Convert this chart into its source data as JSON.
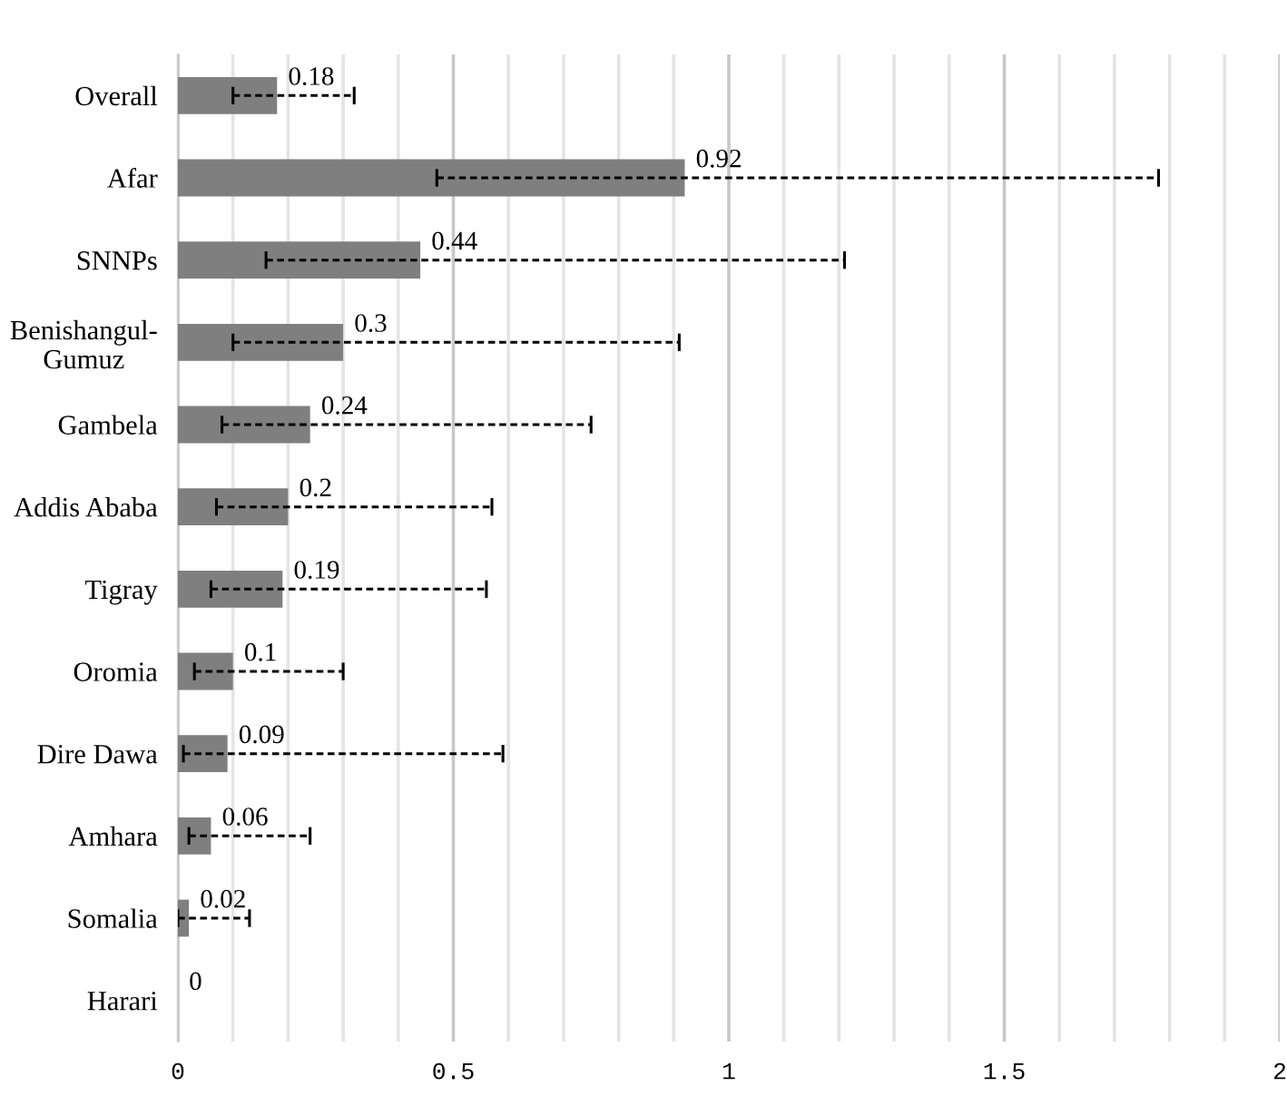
{
  "chart_data": {
    "type": "bar",
    "orientation": "horizontal",
    "categories": [
      "Overall",
      "Afar",
      "SNNPs",
      "Benishangul-\nGumuz",
      "Gambela",
      "Addis Ababa",
      "Tigray",
      "Oromia",
      "Dire Dawa",
      "Amhara",
      "Somalia",
      "Harari"
    ],
    "values": [
      0.18,
      0.92,
      0.44,
      0.3,
      0.24,
      0.2,
      0.19,
      0.1,
      0.09,
      0.06,
      0.02,
      0
    ],
    "errors": [
      [
        0.1,
        0.32
      ],
      [
        0.47,
        1.78
      ],
      [
        0.16,
        1.21
      ],
      [
        0.1,
        0.91
      ],
      [
        0.08,
        0.75
      ],
      [
        0.07,
        0.57
      ],
      [
        0.06,
        0.56
      ],
      [
        0.03,
        0.3
      ],
      [
        0.01,
        0.59
      ],
      [
        0.02,
        0.24
      ],
      [
        0.0,
        0.13
      ],
      null
    ],
    "color": "#7f7f7f",
    "data_labels": true,
    "xlim": [
      0,
      2
    ],
    "xticks": [
      0,
      {
        "value": 0.1,
        "label": null
      },
      {
        "value": 0.2,
        "label": null
      },
      {
        "value": 0.3,
        "label": null
      },
      {
        "value": 0.4,
        "label": null
      },
      0.5,
      {
        "value": 0.6,
        "label": null
      },
      {
        "value": 0.7,
        "label": null
      },
      {
        "value": 0.8,
        "label": null
      },
      {
        "value": 0.9,
        "label": null
      },
      1,
      {
        "value": 1.1,
        "label": null
      },
      {
        "value": 1.2,
        "label": null
      },
      {
        "value": 1.3,
        "label": null
      },
      {
        "value": 1.4,
        "label": null
      },
      1.5,
      {
        "value": 1.6,
        "label": null
      },
      {
        "value": 1.7,
        "label": null
      },
      {
        "value": 1.8,
        "label": null
      },
      {
        "value": 1.9,
        "label": null
      },
      2
    ],
    "grid": "x",
    "line_style": "dashed"
  }
}
